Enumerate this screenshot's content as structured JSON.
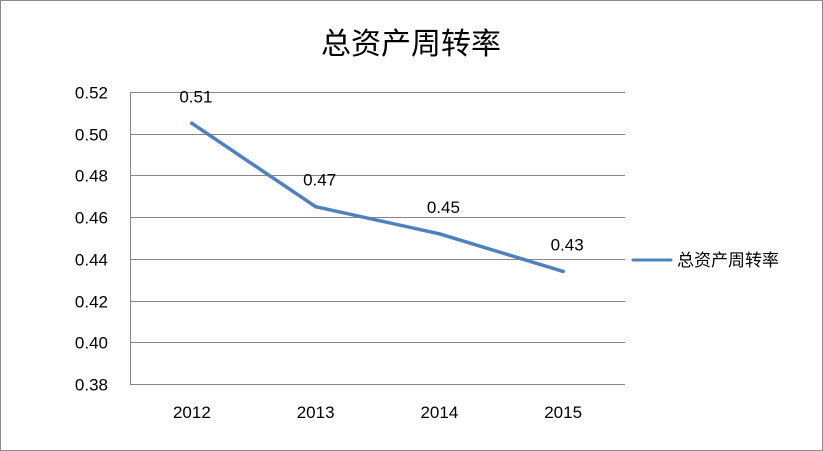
{
  "chart_data": {
    "type": "line",
    "title": "总资产周转率",
    "categories": [
      "2012",
      "2013",
      "2014",
      "2015"
    ],
    "series": [
      {
        "name": "总资产周转率",
        "values": [
          0.505,
          0.465,
          0.452,
          0.434
        ],
        "data_labels": [
          "0.51",
          "0.47",
          "0.45",
          "0.43"
        ]
      }
    ],
    "yticks": [
      "0.38",
      "0.40",
      "0.42",
      "0.44",
      "0.46",
      "0.48",
      "0.50",
      "0.52"
    ],
    "ylim": [
      0.38,
      0.52
    ],
    "ystep": 0.02,
    "xlabel": "",
    "ylabel": "",
    "grid": "horizontal",
    "legend_position": "right",
    "colors": {
      "series": "#4f81bd",
      "grid": "#868686",
      "text": "#000000"
    }
  }
}
